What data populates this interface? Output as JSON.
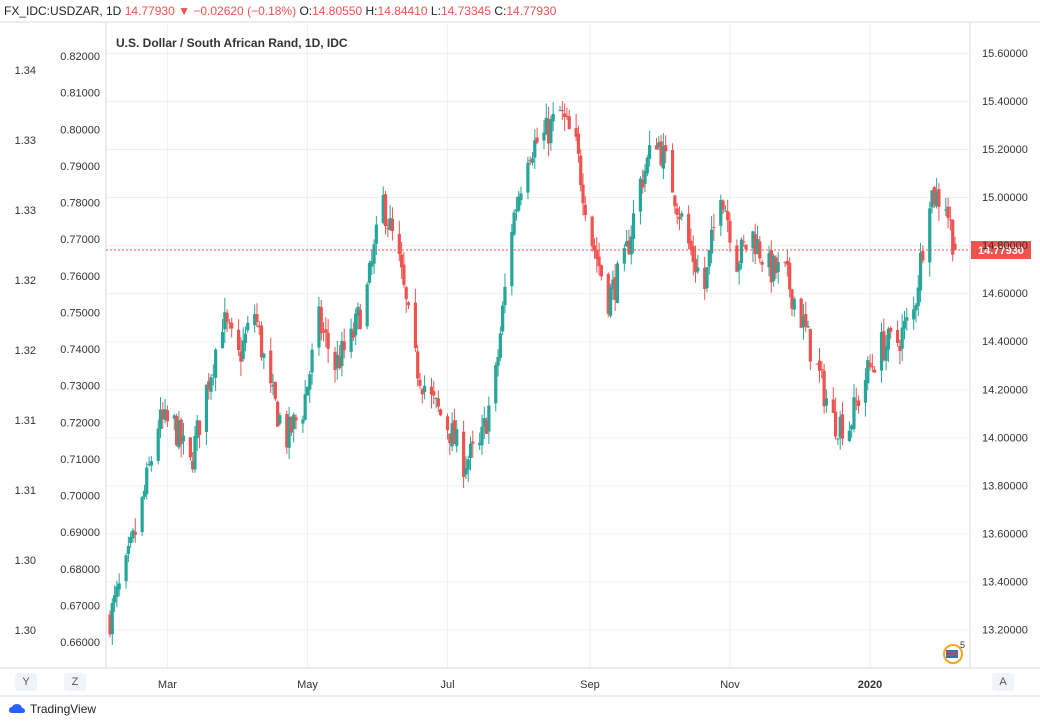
{
  "header": {
    "symbol": "FX_IDC:USDZAR, 1D",
    "last": "14.77930",
    "arrow": "▼",
    "change": "−0.02620 (−0.18%)",
    "o_label": "O:",
    "o_value": "14.80550",
    "h_label": "H:",
    "h_value": "14.84410",
    "l_label": "L:",
    "l_value": "14.73345",
    "c_label": "C:",
    "c_value": "14.77930"
  },
  "chart_data": {
    "type": "candlestick",
    "title": "U.S. Dollar / South African Rand, 1D, IDC",
    "x_tick_labels": [
      "Mar",
      "May",
      "Jul",
      "Sep",
      "Nov",
      "2020"
    ],
    "y_right_ticks": [
      "13.20000",
      "13.40000",
      "13.60000",
      "13.80000",
      "14.00000",
      "14.20000",
      "14.40000",
      "14.60000",
      "14.80000",
      "15.00000",
      "15.20000",
      "15.40000",
      "15.60000"
    ],
    "y_left_ticks_inner": [
      "0.66000",
      "0.67000",
      "0.68000",
      "0.69000",
      "0.70000",
      "0.71000",
      "0.72000",
      "0.73000",
      "0.74000",
      "0.75000",
      "0.76000",
      "0.77000",
      "0.78000",
      "0.79000",
      "0.80000",
      "0.81000",
      "0.82000"
    ],
    "y_left_ticks_outer": [
      "1.30",
      "1.30",
      "1.31",
      "1.31",
      "1.32",
      "1.32",
      "1.33",
      "1.33",
      "1.34"
    ],
    "y_range": [
      13.04,
      15.72
    ],
    "last_price": 14.7793,
    "last_price_label": "14.77930",
    "price_path": [
      {
        "date": "2019-02-04",
        "value": 13.25
      },
      {
        "date": "2019-02-11",
        "value": 13.45
      },
      {
        "date": "2019-02-18",
        "value": 13.72
      },
      {
        "date": "2019-02-25",
        "value": 14.06
      },
      {
        "date": "2019-03-04",
        "value": 14.05
      },
      {
        "date": "2019-03-11",
        "value": 13.88
      },
      {
        "date": "2019-03-18",
        "value": 14.2
      },
      {
        "date": "2019-03-25",
        "value": 14.49
      },
      {
        "date": "2019-04-01",
        "value": 14.33
      },
      {
        "date": "2019-04-08",
        "value": 14.52
      },
      {
        "date": "2019-04-15",
        "value": 14.18
      },
      {
        "date": "2019-04-22",
        "value": 14.0
      },
      {
        "date": "2019-04-29",
        "value": 14.12
      },
      {
        "date": "2019-05-06",
        "value": 14.48
      },
      {
        "date": "2019-05-13",
        "value": 14.3
      },
      {
        "date": "2019-05-20",
        "value": 14.4
      },
      {
        "date": "2019-05-27",
        "value": 14.61
      },
      {
        "date": "2019-06-03",
        "value": 14.98
      },
      {
        "date": "2019-06-10",
        "value": 14.72
      },
      {
        "date": "2019-06-17",
        "value": 14.31
      },
      {
        "date": "2019-06-24",
        "value": 14.15
      },
      {
        "date": "2019-07-01",
        "value": 14.05
      },
      {
        "date": "2019-07-08",
        "value": 13.9
      },
      {
        "date": "2019-07-15",
        "value": 13.95
      },
      {
        "date": "2019-07-22",
        "value": 14.25
      },
      {
        "date": "2019-07-29",
        "value": 14.88
      },
      {
        "date": "2019-08-05",
        "value": 15.2
      },
      {
        "date": "2019-08-12",
        "value": 15.25
      },
      {
        "date": "2019-08-19",
        "value": 15.35
      },
      {
        "date": "2019-08-26",
        "value": 15.2
      },
      {
        "date": "2019-09-02",
        "value": 14.82
      },
      {
        "date": "2019-09-09",
        "value": 14.58
      },
      {
        "date": "2019-09-16",
        "value": 14.72
      },
      {
        "date": "2019-09-23",
        "value": 15.06
      },
      {
        "date": "2019-09-30",
        "value": 15.25
      },
      {
        "date": "2019-10-07",
        "value": 15.05
      },
      {
        "date": "2019-10-14",
        "value": 14.8
      },
      {
        "date": "2019-10-21",
        "value": 14.62
      },
      {
        "date": "2019-10-28",
        "value": 15.05
      },
      {
        "date": "2019-11-04",
        "value": 14.74
      },
      {
        "date": "2019-11-11",
        "value": 14.84
      },
      {
        "date": "2019-11-18",
        "value": 14.7
      },
      {
        "date": "2019-11-25",
        "value": 14.68
      },
      {
        "date": "2019-12-02",
        "value": 14.5
      },
      {
        "date": "2019-12-09",
        "value": 14.28
      },
      {
        "date": "2019-12-16",
        "value": 14.07
      },
      {
        "date": "2019-12-23",
        "value": 14.05
      },
      {
        "date": "2019-12-30",
        "value": 14.25
      },
      {
        "date": "2020-01-06",
        "value": 14.38
      },
      {
        "date": "2020-01-13",
        "value": 14.4
      },
      {
        "date": "2020-01-20",
        "value": 14.52
      },
      {
        "date": "2020-01-27",
        "value": 15.02
      },
      {
        "date": "2020-02-03",
        "value": 14.98
      },
      {
        "date": "2020-02-07",
        "value": 14.78
      }
    ],
    "up_color": "#26a69a",
    "down_color": "#ef5350",
    "grid": true
  },
  "footer": {
    "brand": "TradingView",
    "btn_y": "Y",
    "btn_z": "Z",
    "btn_a": "A",
    "events_count": "5"
  }
}
